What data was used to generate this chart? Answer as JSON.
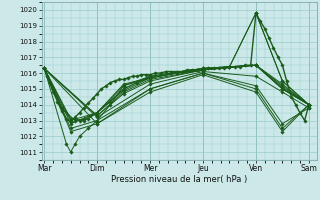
{
  "xlabel": "Pression niveau de la mer( hPa )",
  "bg_color": "#cce8e8",
  "grid_color": "#99cccc",
  "line_color": "#1a5c1a",
  "marker_color": "#1a5c1a",
  "ylim": [
    1010.5,
    1020.5
  ],
  "yticks": [
    1011,
    1012,
    1013,
    1014,
    1015,
    1016,
    1017,
    1018,
    1019,
    1020
  ],
  "day_labels": [
    "Mar",
    "Dim",
    "Mer",
    "Jeu",
    "Ven",
    "Sam"
  ],
  "day_positions": [
    0,
    1,
    2,
    3,
    4,
    5
  ],
  "xlim": [
    -0.05,
    5.15
  ],
  "series": [
    [
      0.0,
      1016.3,
      0.05,
      1015.8,
      0.1,
      1015.4,
      0.17,
      1014.8,
      0.25,
      1014.2,
      0.33,
      1013.6,
      0.42,
      1013.1,
      0.5,
      1012.9,
      0.58,
      1013.2,
      0.67,
      1013.5,
      0.75,
      1013.8,
      0.83,
      1014.1,
      0.92,
      1014.4,
      1.0,
      1014.7,
      1.08,
      1015.0,
      1.17,
      1015.2,
      1.25,
      1015.4,
      1.33,
      1015.5,
      1.42,
      1015.6,
      1.5,
      1015.6,
      1.58,
      1015.7,
      1.67,
      1015.8,
      1.75,
      1015.8,
      1.83,
      1015.9,
      1.92,
      1015.9,
      2.0,
      1015.9,
      2.1,
      1016.0,
      2.2,
      1016.0,
      2.3,
      1016.1,
      2.4,
      1016.1,
      2.5,
      1016.1,
      2.6,
      1016.1,
      2.7,
      1016.2,
      2.8,
      1016.2,
      2.9,
      1016.2,
      3.0,
      1016.2,
      3.1,
      1016.3,
      3.2,
      1016.3,
      3.3,
      1016.3,
      3.4,
      1016.3,
      3.5,
      1016.4,
      3.6,
      1016.4,
      3.7,
      1016.4,
      3.8,
      1016.5,
      3.9,
      1016.5,
      4.0,
      1019.8,
      4.08,
      1019.3,
      4.17,
      1018.8,
      4.25,
      1018.2,
      4.33,
      1017.6,
      4.42,
      1017.0,
      4.5,
      1016.5,
      4.58,
      1015.5,
      4.67,
      1014.5,
      4.75,
      1014.0,
      4.83,
      1013.5,
      4.92,
      1013.0,
      5.0,
      1014.0
    ],
    [
      0.0,
      1016.3,
      0.17,
      1015.0,
      0.33,
      1013.8,
      0.5,
      1013.1,
      0.67,
      1013.0,
      0.83,
      1013.1,
      1.0,
      1013.5,
      1.25,
      1014.2,
      1.5,
      1015.0,
      1.75,
      1015.4,
      2.0,
      1015.7,
      2.5,
      1016.0,
      3.0,
      1016.2,
      3.5,
      1016.4,
      4.0,
      1019.8,
      4.5,
      1015.5,
      5.0,
      1014.0
    ],
    [
      0.0,
      1016.3,
      0.42,
      1011.5,
      0.5,
      1011.0,
      0.58,
      1011.5,
      0.67,
      1012.0,
      0.83,
      1012.5,
      1.0,
      1013.0,
      1.25,
      1014.0,
      1.5,
      1015.2,
      2.0,
      1015.7,
      2.5,
      1016.0,
      3.0,
      1016.2,
      3.5,
      1016.4,
      4.0,
      1019.8,
      4.5,
      1015.5,
      5.0,
      1014.0
    ],
    [
      0.0,
      1016.3,
      0.33,
      1013.8,
      0.58,
      1013.0,
      0.75,
      1013.1,
      1.0,
      1013.5,
      1.5,
      1015.3,
      2.0,
      1015.7,
      2.5,
      1016.0,
      3.0,
      1016.2,
      3.5,
      1016.4,
      4.0,
      1016.5,
      4.5,
      1015.3,
      5.0,
      1014.0
    ],
    [
      0.0,
      1016.3,
      0.5,
      1013.1,
      0.75,
      1013.0,
      1.0,
      1013.5,
      1.5,
      1015.2,
      2.0,
      1015.8,
      3.0,
      1016.3,
      4.0,
      1016.5,
      4.5,
      1015.2,
      5.0,
      1014.0
    ],
    [
      0.0,
      1016.3,
      0.5,
      1013.0,
      1.0,
      1013.5,
      1.5,
      1015.0,
      2.0,
      1015.8,
      3.0,
      1016.3,
      4.0,
      1016.5,
      4.5,
      1015.1,
      5.0,
      1014.0
    ],
    [
      0.0,
      1016.3,
      0.5,
      1012.8,
      1.0,
      1013.5,
      1.5,
      1014.9,
      2.0,
      1015.7,
      3.0,
      1016.3,
      4.0,
      1016.5,
      4.5,
      1015.0,
      5.0,
      1014.0
    ],
    [
      0.0,
      1016.3,
      1.0,
      1013.3,
      1.5,
      1014.8,
      2.0,
      1015.6,
      3.0,
      1016.2,
      4.0,
      1016.5,
      4.5,
      1015.0,
      5.0,
      1014.0
    ],
    [
      0.0,
      1016.3,
      1.0,
      1013.3,
      1.5,
      1014.7,
      2.0,
      1015.5,
      3.0,
      1016.2,
      4.0,
      1016.5,
      4.5,
      1015.0,
      5.0,
      1014.0
    ],
    [
      0.0,
      1016.3,
      1.0,
      1013.2,
      2.0,
      1015.3,
      3.0,
      1016.1,
      4.0,
      1015.8,
      4.5,
      1014.8,
      5.0,
      1013.8
    ],
    [
      0.0,
      1016.3,
      1.0,
      1012.8,
      2.0,
      1015.0,
      3.0,
      1016.0,
      4.0,
      1015.2,
      4.5,
      1012.8,
      5.0,
      1013.8
    ],
    [
      0.0,
      1016.3,
      0.5,
      1012.5,
      1.0,
      1013.0,
      2.0,
      1015.0,
      3.0,
      1016.0,
      4.0,
      1015.0,
      4.5,
      1012.5,
      5.0,
      1014.0
    ],
    [
      0.0,
      1016.3,
      0.5,
      1012.3,
      1.0,
      1012.8,
      2.0,
      1014.8,
      3.0,
      1015.9,
      4.0,
      1014.8,
      4.5,
      1012.3,
      5.0,
      1014.0
    ]
  ]
}
